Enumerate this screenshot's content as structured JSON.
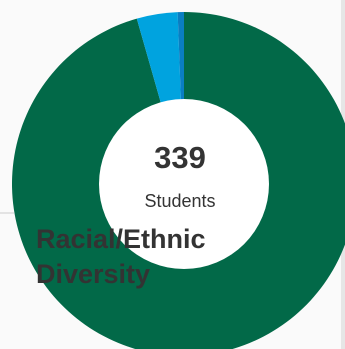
{
  "chart_data": {
    "type": "pie",
    "title": "Racial/Ethnic Diversity",
    "center_value": "339",
    "center_label": "Students",
    "unit": "Students",
    "slices": [
      {
        "value": 324,
        "color": "#026948"
      },
      {
        "value": 13,
        "color": "#00a3df"
      },
      {
        "value": 2,
        "color": "#0a7ec2"
      }
    ],
    "donut": true,
    "legend": "none"
  },
  "colors": {
    "background": "#fafafa",
    "text": "#333333"
  }
}
